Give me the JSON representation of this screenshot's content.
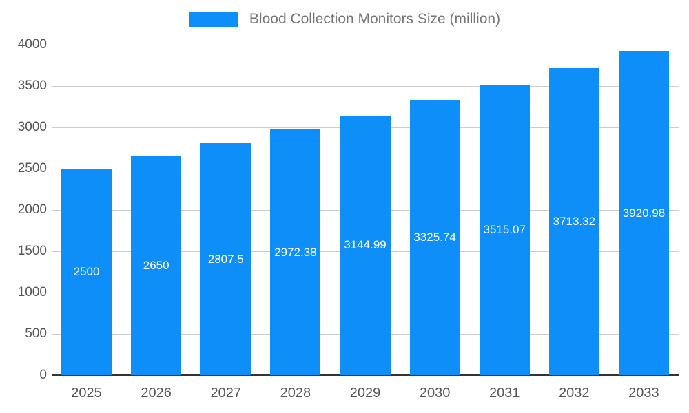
{
  "legend": {
    "label": "Blood Collection Monitors Size (million)"
  },
  "colors": {
    "bar": "#0d8ef8",
    "grid": "#cccccc",
    "zero_line": "#333333",
    "axis_text": "#555555",
    "legend_text": "#757575",
    "value_label": "#ffffff"
  },
  "chart_data": {
    "type": "bar",
    "title": "Blood Collection Monitors Size (million)",
    "categories": [
      "2025",
      "2026",
      "2027",
      "2028",
      "2029",
      "2030",
      "2031",
      "2032",
      "2033"
    ],
    "values": [
      2500,
      2650,
      2807.5,
      2972.38,
      3144.99,
      3325.74,
      3515.07,
      3713.32,
      3920.98
    ],
    "value_labels": [
      "2500",
      "2650",
      "2807.5",
      "2972.38",
      "3144.99",
      "3325.74",
      "3515.07",
      "3713.32",
      "3920.98"
    ],
    "xlabel": "",
    "ylabel": "",
    "ylim": [
      0,
      4000
    ],
    "yticks": [
      0,
      500,
      1000,
      1500,
      2000,
      2500,
      3000,
      3500,
      4000
    ],
    "grid": true,
    "legend_position": "top"
  }
}
